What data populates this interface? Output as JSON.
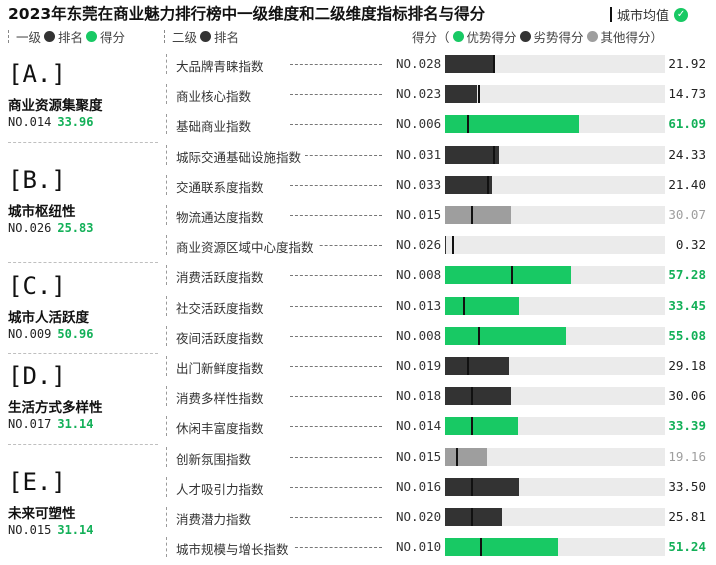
{
  "title": "2023年东莞在商业魅力排行榜中一级维度和二级维度指标排名与得分",
  "avg_legend": {
    "label": "城市均值",
    "icon": "check-icon"
  },
  "header": {
    "level1": "一级",
    "rank": "排名",
    "score": "得分",
    "level2": "二级",
    "rank2": "排名",
    "score_label": "得分（",
    "good": "优势得分",
    "bad": "劣势得分",
    "other": "其他得分）"
  },
  "colors": {
    "good": "#18c964",
    "bad": "#333333",
    "other": "#9e9e9e",
    "track": "#ebebeb",
    "good_text": "#13b058",
    "other_text": "#9e9e9e",
    "bad_text": "#222222"
  },
  "dimensions": [
    {
      "letter": "A.",
      "name": "商业资源集聚度",
      "rank": "NO.014",
      "score": "33.96"
    },
    {
      "letter": "B.",
      "name": "城市枢纽性",
      "rank": "NO.026",
      "score": "25.83"
    },
    {
      "letter": "C.",
      "name": "城市人活跃度",
      "rank": "NO.009",
      "score": "50.96"
    },
    {
      "letter": "D.",
      "name": "生活方式多样性",
      "rank": "NO.017",
      "score": "31.14"
    },
    {
      "letter": "E.",
      "name": "未来可塑性",
      "rank": "NO.015",
      "score": "31.14"
    }
  ],
  "chart_data": {
    "type": "bar",
    "xlim": [
      0,
      100
    ],
    "categories": [
      "大品牌青睐指数",
      "商业核心指数",
      "基础商业指数",
      "城际交通基础设施指数",
      "交通联系度指数",
      "物流通达度指数",
      "商业资源区域中心度指数",
      "消费活跃度指数",
      "社交活跃度指数",
      "夜间活跃度指数",
      "出门新鲜度指数",
      "消费多样性指数",
      "休闲丰富度指数",
      "创新氛围指数",
      "人才吸引力指数",
      "消费潜力指数",
      "城市规模与增长指数"
    ],
    "ranks": [
      "NO.028",
      "NO.023",
      "NO.006",
      "NO.031",
      "NO.033",
      "NO.015",
      "NO.026",
      "NO.008",
      "NO.013",
      "NO.008",
      "NO.019",
      "NO.018",
      "NO.014",
      "NO.015",
      "NO.016",
      "NO.020",
      "NO.010"
    ],
    "values": [
      21.92,
      14.73,
      61.09,
      24.33,
      21.4,
      30.07,
      0.32,
      57.28,
      33.45,
      55.08,
      29.18,
      30.06,
      33.39,
      19.16,
      33.5,
      25.81,
      51.24
    ],
    "score_text": [
      "21.92",
      "14.73",
      "61.09",
      "24.33",
      "21.40",
      "30.07",
      "0.32",
      "57.28",
      "33.45",
      "55.08",
      "29.18",
      "30.06",
      "33.39",
      "19.16",
      "33.50",
      "25.81",
      "51.24"
    ],
    "status": [
      "bad",
      "bad",
      "good",
      "bad",
      "bad",
      "other",
      "bad",
      "good",
      "good",
      "good",
      "bad",
      "bad",
      "good",
      "other",
      "bad",
      "bad",
      "good"
    ],
    "city_average": [
      22,
      15,
      10,
      22,
      19,
      12,
      3,
      30,
      8,
      15,
      10,
      12,
      12,
      5,
      12,
      12,
      16
    ],
    "group": [
      0,
      0,
      0,
      1,
      1,
      1,
      1,
      2,
      2,
      2,
      3,
      3,
      3,
      4,
      4,
      4,
      4
    ]
  }
}
